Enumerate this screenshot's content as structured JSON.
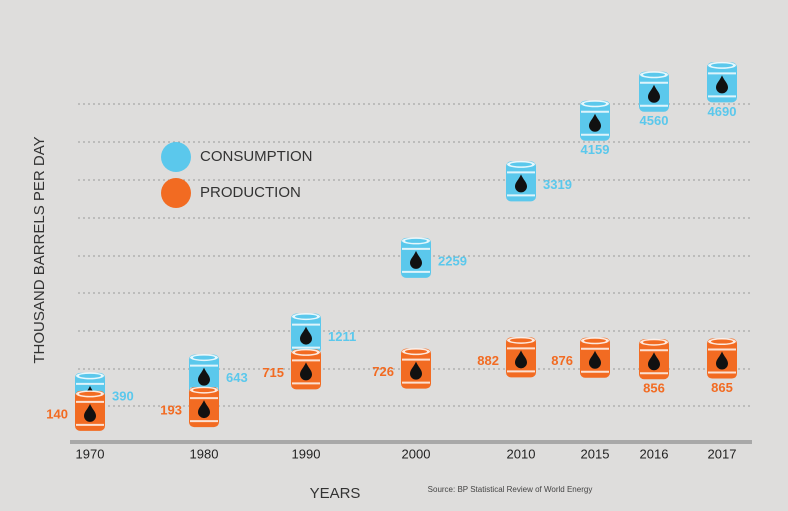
{
  "chart_data": {
    "type": "pictogram",
    "x_label": "YEARS",
    "y_label": "THOUSAND BARRELS PER DAY",
    "source": "Source: BP Statistical Review of World Energy",
    "categories": [
      "1970",
      "1980",
      "1990",
      "2000",
      "2010",
      "2015",
      "2016",
      "2017"
    ],
    "ylim": [
      0,
      5000
    ],
    "series": [
      {
        "name": "CONSUMPTION",
        "color": "#5bc8ec",
        "values": [
          390,
          643,
          1211,
          2259,
          3319,
          4159,
          4560,
          4690
        ]
      },
      {
        "name": "PRODUCTION",
        "color": "#f26b22",
        "values": [
          140,
          193,
          715,
          726,
          882,
          876,
          856,
          865
        ]
      }
    ]
  }
}
